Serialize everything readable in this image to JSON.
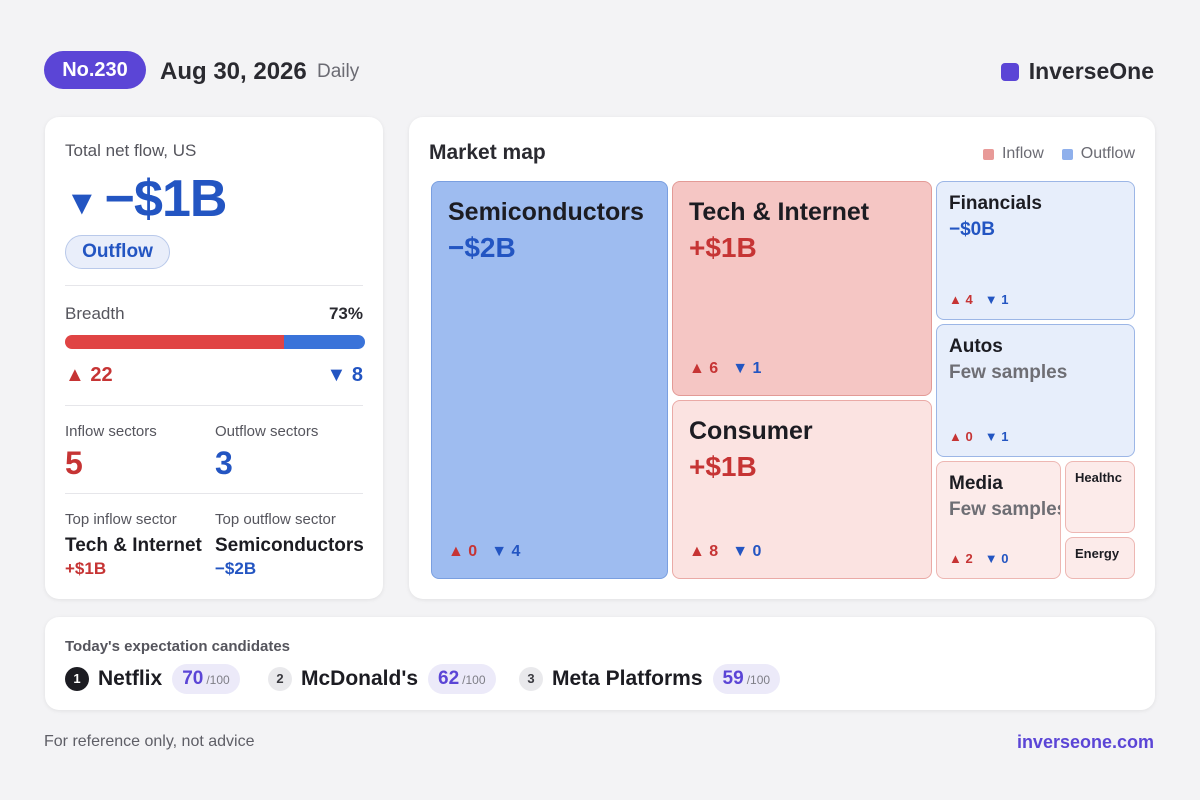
{
  "header": {
    "issue": "No.230",
    "date": "Aug 30, 2026",
    "period": "Daily",
    "brand": "InverseOne"
  },
  "summary": {
    "label": "Total net flow, US",
    "direction_arrow": "▼",
    "value": "−$1B",
    "status": "Outflow",
    "breadth_label": "Breadth",
    "breadth_pct": "73%",
    "breadth_inflow_fraction": 0.73,
    "up_arrow": "▲",
    "up_count": "22",
    "down_arrow": "▼",
    "down_count": "8",
    "inflow_sectors_label": "Inflow sectors",
    "inflow_sectors": "5",
    "outflow_sectors_label": "Outflow sectors",
    "outflow_sectors": "3",
    "top_inflow_label": "Top inflow sector",
    "top_inflow_name": "Tech & Internet",
    "top_inflow_value": "+$1B",
    "top_outflow_label": "Top outflow sector",
    "top_outflow_name": "Semiconductors",
    "top_outflow_value": "−$2B"
  },
  "market_map": {
    "title": "Market map",
    "legend": {
      "inflow": "Inflow",
      "outflow": "Outflow"
    },
    "colors": {
      "inflow": "#e89a98",
      "outflow": "#8fb0ec"
    },
    "tiles": [
      {
        "name": "Semiconductors",
        "value": "−$2B",
        "up": "0",
        "down": "4"
      },
      {
        "name": "Tech & Internet",
        "value": "+$1B",
        "up": "6",
        "down": "1"
      },
      {
        "name": "Consumer",
        "value": "+$1B",
        "up": "8",
        "down": "0"
      },
      {
        "name": "Financials",
        "value": "−$0B",
        "up": "4",
        "down": "1"
      },
      {
        "name": "Autos",
        "value": "Few samples",
        "up": "0",
        "down": "1"
      },
      {
        "name": "Media",
        "value": "Few samples",
        "up": "2",
        "down": "0"
      },
      {
        "name": "Healthc"
      },
      {
        "name": "Energy"
      }
    ]
  },
  "candidates": {
    "title": "Today's expectation candidates",
    "items": [
      {
        "rank": "1",
        "name": "Netflix",
        "score": "70",
        "max": "/100"
      },
      {
        "rank": "2",
        "name": "McDonald's",
        "score": "62",
        "max": "/100"
      },
      {
        "rank": "3",
        "name": "Meta Platforms",
        "score": "59",
        "max": "/100"
      }
    ]
  },
  "footer": {
    "note": "For reference only, not advice",
    "link": "inverseone.com"
  },
  "theme": {
    "accent": "#5b45d6",
    "inflow_red": "#c63434",
    "outflow_blue": "#2355c2"
  }
}
